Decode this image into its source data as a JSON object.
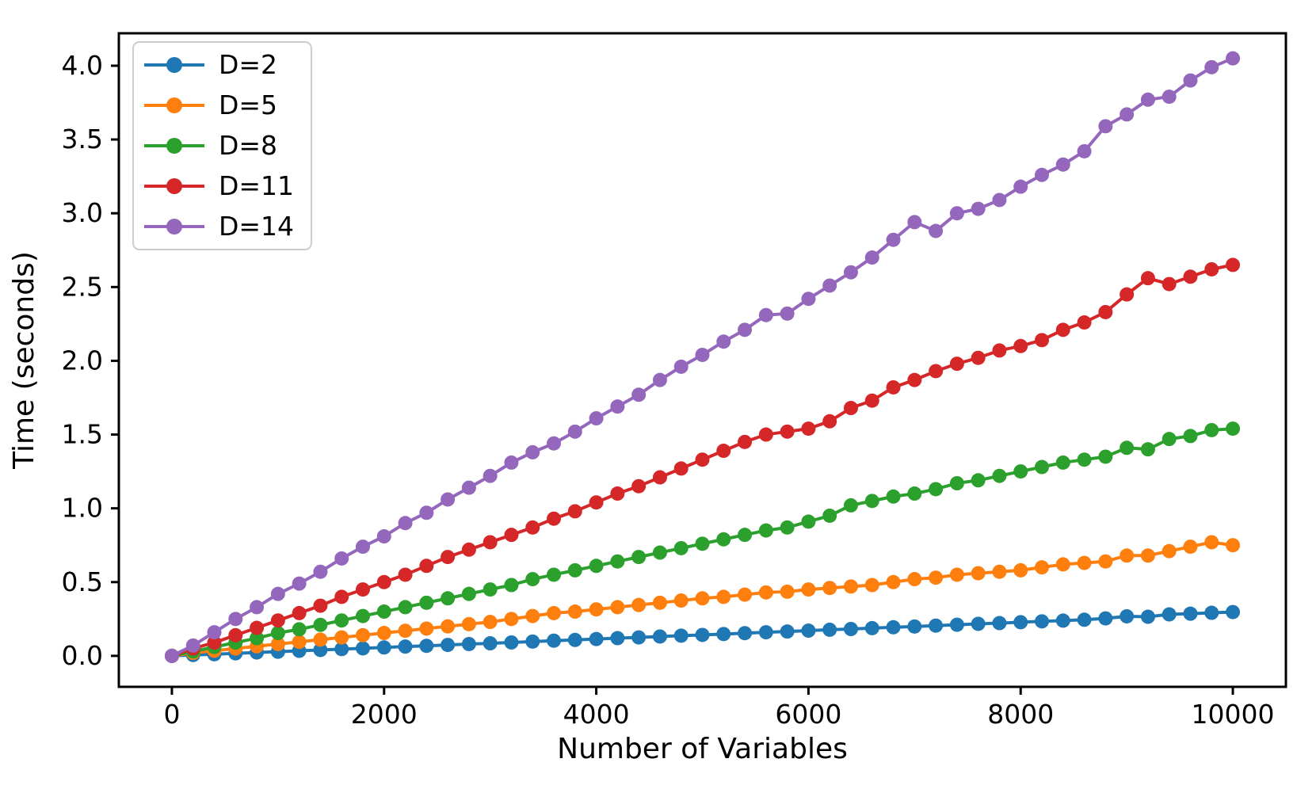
{
  "chart_data": {
    "type": "line",
    "title": "",
    "xlabel": "Number of Variables",
    "ylabel": "Time (seconds)",
    "grid": false,
    "legend_position": "upper left",
    "xlim": [
      -500,
      10500
    ],
    "ylim": [
      -0.21,
      4.22
    ],
    "x_ticks": [
      0,
      2000,
      4000,
      6000,
      8000,
      10000
    ],
    "x_tick_labels": [
      "0",
      "2000",
      "4000",
      "6000",
      "8000",
      "10000"
    ],
    "y_ticks": [
      0.0,
      0.5,
      1.0,
      1.5,
      2.0,
      2.5,
      3.0,
      3.5,
      4.0
    ],
    "y_tick_labels": [
      "0.0",
      "0.5",
      "1.0",
      "1.5",
      "2.0",
      "2.5",
      "3.0",
      "3.5",
      "4.0"
    ],
    "marker": "circle",
    "marker_radius": 9,
    "line_width": 4,
    "x": [
      0,
      200,
      400,
      600,
      800,
      1000,
      1200,
      1400,
      1600,
      1800,
      2000,
      2200,
      2400,
      2600,
      2800,
      3000,
      3200,
      3400,
      3600,
      3800,
      4000,
      4200,
      4400,
      4600,
      4800,
      5000,
      5200,
      5400,
      5600,
      5800,
      6000,
      6200,
      6400,
      6600,
      6800,
      7000,
      7200,
      7400,
      7600,
      7800,
      8000,
      8200,
      8400,
      8600,
      8800,
      9000,
      9200,
      9400,
      9600,
      9800,
      10000
    ],
    "series": [
      {
        "name": "D=2",
        "color": "#1f77b4",
        "values": [
          0.0,
          0.006,
          0.011,
          0.017,
          0.023,
          0.028,
          0.034,
          0.04,
          0.046,
          0.051,
          0.057,
          0.063,
          0.068,
          0.074,
          0.08,
          0.085,
          0.091,
          0.097,
          0.103,
          0.108,
          0.114,
          0.12,
          0.125,
          0.131,
          0.137,
          0.142,
          0.148,
          0.154,
          0.16,
          0.165,
          0.171,
          0.177,
          0.182,
          0.188,
          0.194,
          0.199,
          0.205,
          0.211,
          0.217,
          0.222,
          0.228,
          0.234,
          0.239,
          0.245,
          0.254,
          0.268,
          0.265,
          0.281,
          0.286,
          0.292,
          0.297
        ]
      },
      {
        "name": "D=5",
        "color": "#ff7f0e",
        "values": [
          0.0,
          0.02,
          0.035,
          0.05,
          0.065,
          0.08,
          0.095,
          0.11,
          0.125,
          0.14,
          0.155,
          0.17,
          0.185,
          0.2,
          0.215,
          0.23,
          0.25,
          0.27,
          0.29,
          0.3,
          0.315,
          0.33,
          0.345,
          0.36,
          0.375,
          0.39,
          0.4,
          0.415,
          0.43,
          0.435,
          0.45,
          0.46,
          0.47,
          0.48,
          0.5,
          0.52,
          0.53,
          0.55,
          0.56,
          0.57,
          0.58,
          0.6,
          0.62,
          0.63,
          0.64,
          0.68,
          0.68,
          0.71,
          0.74,
          0.77,
          0.75
        ]
      },
      {
        "name": "D=8",
        "color": "#2ca02c",
        "values": [
          0.0,
          0.03,
          0.06,
          0.09,
          0.12,
          0.155,
          0.18,
          0.21,
          0.24,
          0.27,
          0.3,
          0.33,
          0.36,
          0.39,
          0.42,
          0.45,
          0.48,
          0.52,
          0.55,
          0.58,
          0.61,
          0.64,
          0.67,
          0.7,
          0.73,
          0.76,
          0.79,
          0.82,
          0.85,
          0.87,
          0.91,
          0.95,
          1.02,
          1.05,
          1.08,
          1.1,
          1.13,
          1.17,
          1.19,
          1.22,
          1.25,
          1.28,
          1.31,
          1.33,
          1.35,
          1.41,
          1.4,
          1.47,
          1.49,
          1.53,
          1.54
        ]
      },
      {
        "name": "D=11",
        "color": "#d62728",
        "values": [
          0.0,
          0.05,
          0.09,
          0.14,
          0.19,
          0.24,
          0.29,
          0.34,
          0.4,
          0.45,
          0.5,
          0.55,
          0.61,
          0.67,
          0.72,
          0.77,
          0.82,
          0.87,
          0.93,
          0.98,
          1.04,
          1.1,
          1.15,
          1.21,
          1.27,
          1.33,
          1.39,
          1.45,
          1.5,
          1.52,
          1.54,
          1.59,
          1.68,
          1.73,
          1.82,
          1.87,
          1.93,
          1.98,
          2.02,
          2.07,
          2.1,
          2.14,
          2.21,
          2.26,
          2.33,
          2.45,
          2.56,
          2.52,
          2.57,
          2.62,
          2.65
        ]
      },
      {
        "name": "D=14",
        "color": "#9467bd",
        "values": [
          0.0,
          0.07,
          0.16,
          0.25,
          0.33,
          0.42,
          0.49,
          0.57,
          0.66,
          0.74,
          0.81,
          0.9,
          0.97,
          1.06,
          1.14,
          1.22,
          1.31,
          1.38,
          1.44,
          1.52,
          1.61,
          1.69,
          1.77,
          1.87,
          1.96,
          2.04,
          2.13,
          2.21,
          2.31,
          2.32,
          2.42,
          2.51,
          2.6,
          2.7,
          2.82,
          2.94,
          2.88,
          3.0,
          3.03,
          3.09,
          3.18,
          3.26,
          3.33,
          3.42,
          3.59,
          3.67,
          3.77,
          3.79,
          3.9,
          3.99,
          4.05
        ]
      }
    ]
  }
}
